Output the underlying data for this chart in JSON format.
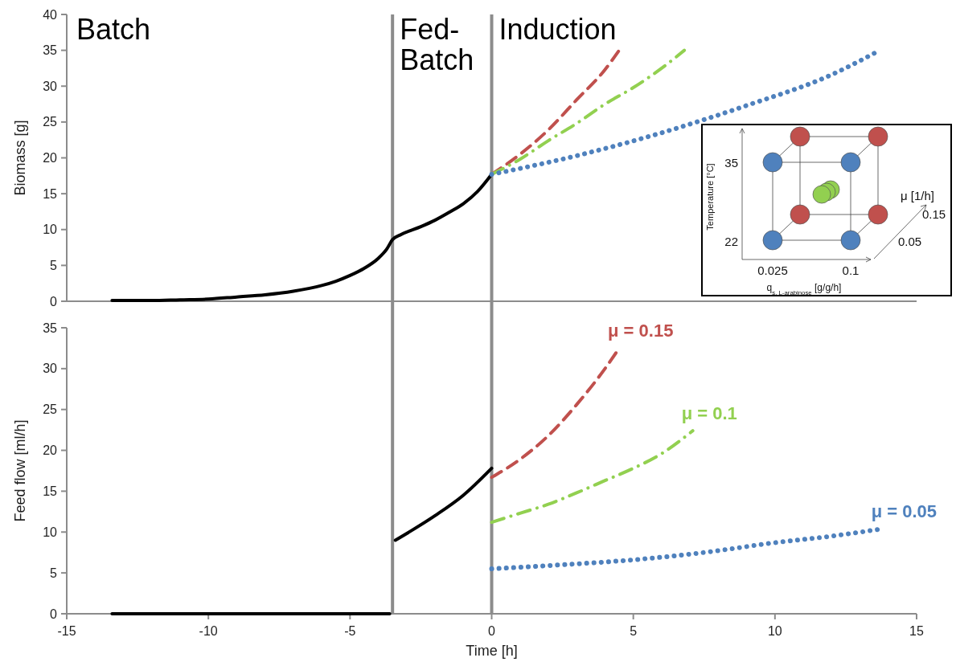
{
  "chart_data": [
    {
      "type": "line",
      "ylabel": "Biomass  [g]",
      "xlim": [
        -15,
        15
      ],
      "ylim": [
        0,
        40
      ],
      "yticks": [
        0,
        5,
        10,
        15,
        20,
        25,
        30,
        35,
        40
      ],
      "xticks": [
        -15,
        -10,
        -5,
        0,
        5,
        10,
        15
      ],
      "tick_labels": "y",
      "grid": false,
      "ref_lines": [
        {
          "axis": "x",
          "value": -3.5,
          "color": "#8c8c8c"
        },
        {
          "axis": "x",
          "value": 0,
          "color": "#8c8c8c"
        }
      ],
      "annotations": [
        "Batch",
        "Fed-Batch",
        "Induction"
      ],
      "series": [
        {
          "color": "#000000",
          "line_style": "solid",
          "x": [
            -13.4,
            -12,
            -11,
            -10,
            -9,
            -8,
            -7,
            -6,
            -5.5,
            -5,
            -4.5,
            -4,
            -3.7,
            -3.5,
            -3.2,
            -2.5,
            -2,
            -1.5,
            -1,
            -0.5,
            0
          ],
          "values": [
            0.1,
            0.1,
            0.2,
            0.3,
            0.6,
            0.9,
            1.4,
            2.2,
            2.8,
            3.6,
            4.6,
            6,
            7.3,
            8.6,
            9.3,
            10.4,
            11.3,
            12.4,
            13.6,
            15.3,
            17.7
          ]
        },
        {
          "color": "#c0504d",
          "line_style": "dashed",
          "x": [
            0,
            1,
            2,
            3,
            4,
            4.5
          ],
          "values": [
            17.7,
            20.5,
            23.9,
            28.1,
            32.3,
            35
          ]
        },
        {
          "color": "#92d050",
          "line_style": "dashdot",
          "x": [
            0,
            1,
            2,
            3,
            4,
            5,
            6,
            6.8
          ],
          "values": [
            17.7,
            19.8,
            22.4,
            24.8,
            27.5,
            29.8,
            32.5,
            35
          ]
        },
        {
          "color": "#4f81bd",
          "line_style": "dotted",
          "x": [
            0,
            3,
            6,
            9,
            12,
            13.7
          ],
          "values": [
            17.7,
            20.3,
            23.5,
            27.3,
            31.6,
            35
          ]
        }
      ]
    },
    {
      "type": "line",
      "ylabel": "Feed flow [ml/h]",
      "xlabel": "Time [h]",
      "xlim": [
        -15,
        15
      ],
      "ylim": [
        0,
        35
      ],
      "yticks": [
        0,
        5,
        10,
        15,
        20,
        25,
        30,
        35
      ],
      "xticks": [
        -15,
        -10,
        -5,
        0,
        5,
        10,
        15
      ],
      "grid": false,
      "ref_lines": [
        {
          "axis": "x",
          "value": -3.5,
          "color": "#8c8c8c"
        },
        {
          "axis": "x",
          "value": 0,
          "color": "#8c8c8c"
        }
      ],
      "series": [
        {
          "color": "#000000",
          "line_style": "solid",
          "x": [
            -13.4,
            -3.6,
            -3.5,
            -3.4,
            -2,
            -1,
            0
          ],
          "values": [
            0,
            0,
            null,
            9,
            12,
            14.5,
            17.8
          ]
        },
        {
          "name": "μ = 0.15",
          "color": "#c0504d",
          "line_style": "dashed",
          "x": [
            0,
            1,
            2,
            3,
            4,
            4.5
          ],
          "values": [
            16.7,
            18.9,
            21.8,
            25.6,
            30,
            32.5
          ]
        },
        {
          "name": "μ = 0.1",
          "color": "#92d050",
          "line_style": "dashdot",
          "x": [
            0,
            1,
            2,
            3,
            4,
            5,
            6,
            7.1
          ],
          "values": [
            11.2,
            12.3,
            13.4,
            14.8,
            16.3,
            17.8,
            19.6,
            22.4
          ]
        },
        {
          "name": "μ = 0.05",
          "color": "#4f81bd",
          "line_style": "dotted",
          "x": [
            0,
            2.5,
            5,
            7.5,
            10,
            12,
            13.8
          ],
          "values": [
            5.5,
            6,
            6.6,
            7.5,
            8.7,
            9.5,
            10.4
          ]
        }
      ]
    },
    {
      "type": "other",
      "xlabel": "q$_{s, L-arabinose}$ [g/g/h]",
      "ylabel": "Temperature [°C]",
      "annotations": [
        "0.025",
        "0.1",
        "22",
        "35",
        "μ [1/h]",
        "0.05",
        "0.15"
      ]
    }
  ]
}
